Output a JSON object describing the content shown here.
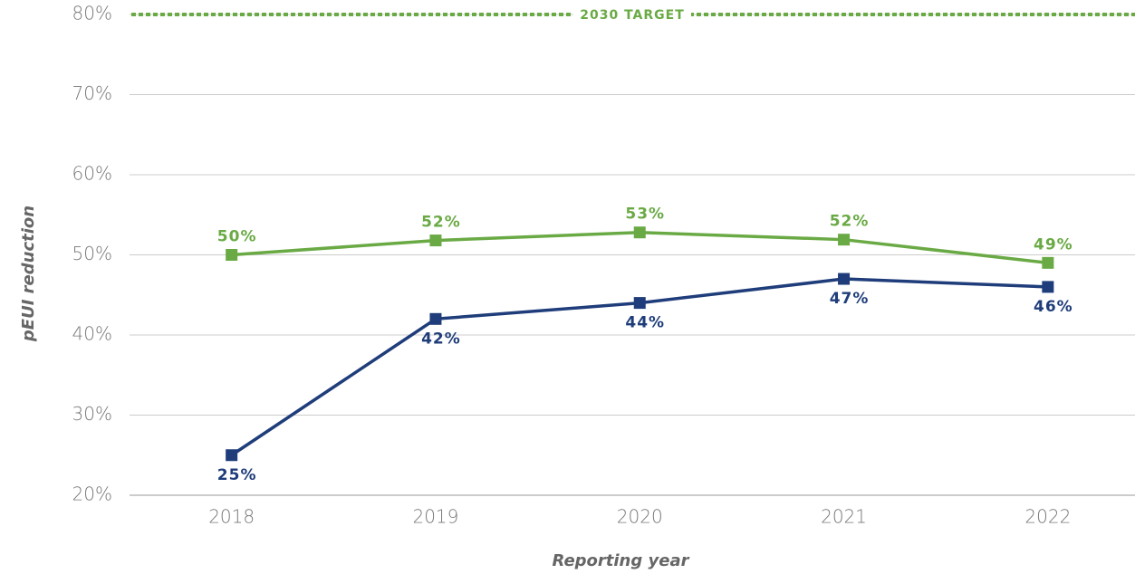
{
  "chart_data": {
    "type": "line",
    "x_label": "Reporting year",
    "y_label": "pEUI reduction",
    "categories": [
      "2018",
      "2019",
      "2020",
      "2021",
      "2022"
    ],
    "series": [
      {
        "color": "#6aaa45",
        "values": [
          50,
          51.8,
          52.8,
          51.9,
          49
        ],
        "value_labels": [
          "50%",
          "52%",
          "53%",
          "52%",
          "49%"
        ],
        "label_position": "above"
      },
      {
        "color": "#1f3d7a",
        "values": [
          25,
          42,
          44,
          47,
          46
        ],
        "value_labels": [
          "25%",
          "42%",
          "44%",
          "47%",
          "46%"
        ],
        "label_position": "below"
      }
    ],
    "target": {
      "value": 80,
      "label": "2030 TARGET",
      "color": "#6aaa45"
    },
    "ylim": [
      20,
      80
    ],
    "yticks": [
      {
        "value": 20,
        "label": "20%"
      },
      {
        "value": 30,
        "label": "30%"
      },
      {
        "value": 40,
        "label": "40%"
      },
      {
        "value": 50,
        "label": "50%"
      },
      {
        "value": 60,
        "label": "60%"
      },
      {
        "value": 70,
        "label": "70%"
      },
      {
        "value": 80,
        "label": "80%"
      }
    ],
    "grid": true
  }
}
